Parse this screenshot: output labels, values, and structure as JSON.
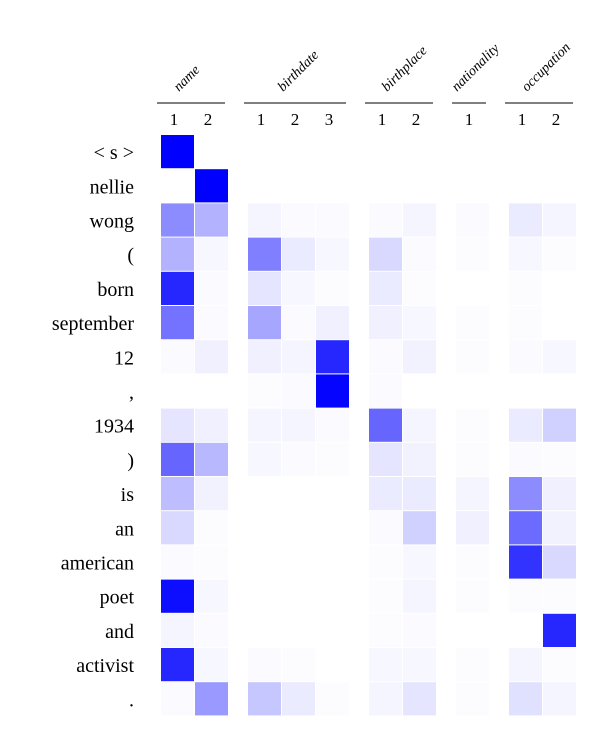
{
  "chart_data": {
    "type": "heatmap",
    "color": "#0000ff",
    "columns": [
      {
        "field": "name",
        "index": "1"
      },
      {
        "field": "name",
        "index": "2"
      },
      {
        "field": "birthdate",
        "index": "1"
      },
      {
        "field": "birthdate",
        "index": "2"
      },
      {
        "field": "birthdate",
        "index": "3"
      },
      {
        "field": "birthplace",
        "index": "1"
      },
      {
        "field": "birthplace",
        "index": "2"
      },
      {
        "field": "nationality",
        "index": "1"
      },
      {
        "field": "occupation",
        "index": "1"
      },
      {
        "field": "occupation",
        "index": "2"
      }
    ],
    "column_groups": [
      {
        "label": "name",
        "count": 2
      },
      {
        "label": "birthdate",
        "count": 3
      },
      {
        "label": "birthplace",
        "count": 2
      },
      {
        "label": "nationality",
        "count": 1
      },
      {
        "label": "occupation",
        "count": 2
      }
    ],
    "rows": [
      "< s >",
      "nellie",
      "wong",
      "(",
      "born",
      "september",
      "12",
      ",",
      "1934",
      ")",
      "is",
      "an",
      "american",
      "poet",
      "and",
      "activist",
      "."
    ],
    "values": [
      [
        1.0,
        0.0,
        0.0,
        0.0,
        0.0,
        0.0,
        0.0,
        0.0,
        0.0,
        0.0
      ],
      [
        0.0,
        1.0,
        0.0,
        0.0,
        0.0,
        0.0,
        0.0,
        0.0,
        0.0,
        0.0
      ],
      [
        0.45,
        0.3,
        0.04,
        0.02,
        0.02,
        0.02,
        0.04,
        0.02,
        0.08,
        0.04
      ],
      [
        0.3,
        0.03,
        0.5,
        0.08,
        0.03,
        0.15,
        0.02,
        0.01,
        0.03,
        0.01
      ],
      [
        0.85,
        0.02,
        0.1,
        0.03,
        0.01,
        0.08,
        0.01,
        0.0,
        0.01,
        0.0
      ],
      [
        0.55,
        0.02,
        0.35,
        0.02,
        0.06,
        0.06,
        0.03,
        0.01,
        0.01,
        0.0
      ],
      [
        0.02,
        0.06,
        0.06,
        0.04,
        0.85,
        0.02,
        0.05,
        0.01,
        0.02,
        0.03
      ],
      [
        0.0,
        0.0,
        0.01,
        0.02,
        0.98,
        0.02,
        0.0,
        0.0,
        0.0,
        0.0
      ],
      [
        0.1,
        0.06,
        0.04,
        0.04,
        0.02,
        0.6,
        0.04,
        0.01,
        0.08,
        0.18
      ],
      [
        0.6,
        0.28,
        0.03,
        0.02,
        0.01,
        0.1,
        0.05,
        0.01,
        0.02,
        0.01
      ],
      [
        0.26,
        0.05,
        0.0,
        0.0,
        0.0,
        0.08,
        0.08,
        0.04,
        0.45,
        0.06
      ],
      [
        0.15,
        0.01,
        0.0,
        0.0,
        0.0,
        0.02,
        0.18,
        0.06,
        0.58,
        0.05
      ],
      [
        0.02,
        0.01,
        0.0,
        0.0,
        0.0,
        0.01,
        0.03,
        0.01,
        0.8,
        0.15
      ],
      [
        0.95,
        0.03,
        0.0,
        0.0,
        0.0,
        0.01,
        0.04,
        0.01,
        0.01,
        0.01
      ],
      [
        0.04,
        0.02,
        0.0,
        0.0,
        0.0,
        0.01,
        0.02,
        0.0,
        0.0,
        0.85
      ],
      [
        0.85,
        0.03,
        0.02,
        0.01,
        0.0,
        0.03,
        0.03,
        0.01,
        0.04,
        0.01
      ],
      [
        0.02,
        0.4,
        0.22,
        0.08,
        0.01,
        0.04,
        0.1,
        0.01,
        0.12,
        0.04
      ]
    ]
  }
}
